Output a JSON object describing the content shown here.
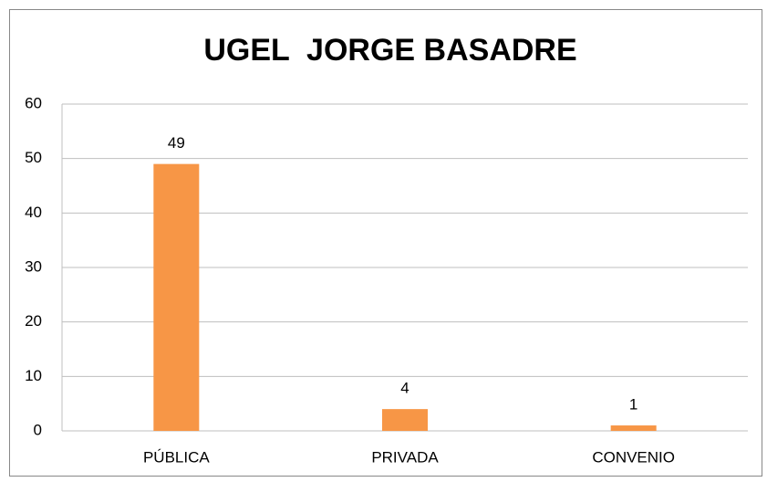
{
  "chart_data": {
    "type": "bar",
    "title": "UGEL  JORGE BASADRE",
    "categories": [
      "PÚBLICA",
      "PRIVADA",
      "CONVENIO"
    ],
    "values": [
      49,
      4,
      1
    ],
    "color": "#f79646",
    "ylim": [
      0,
      60
    ],
    "yticks": [
      0,
      10,
      20,
      30,
      40,
      50,
      60
    ],
    "grid": true
  }
}
